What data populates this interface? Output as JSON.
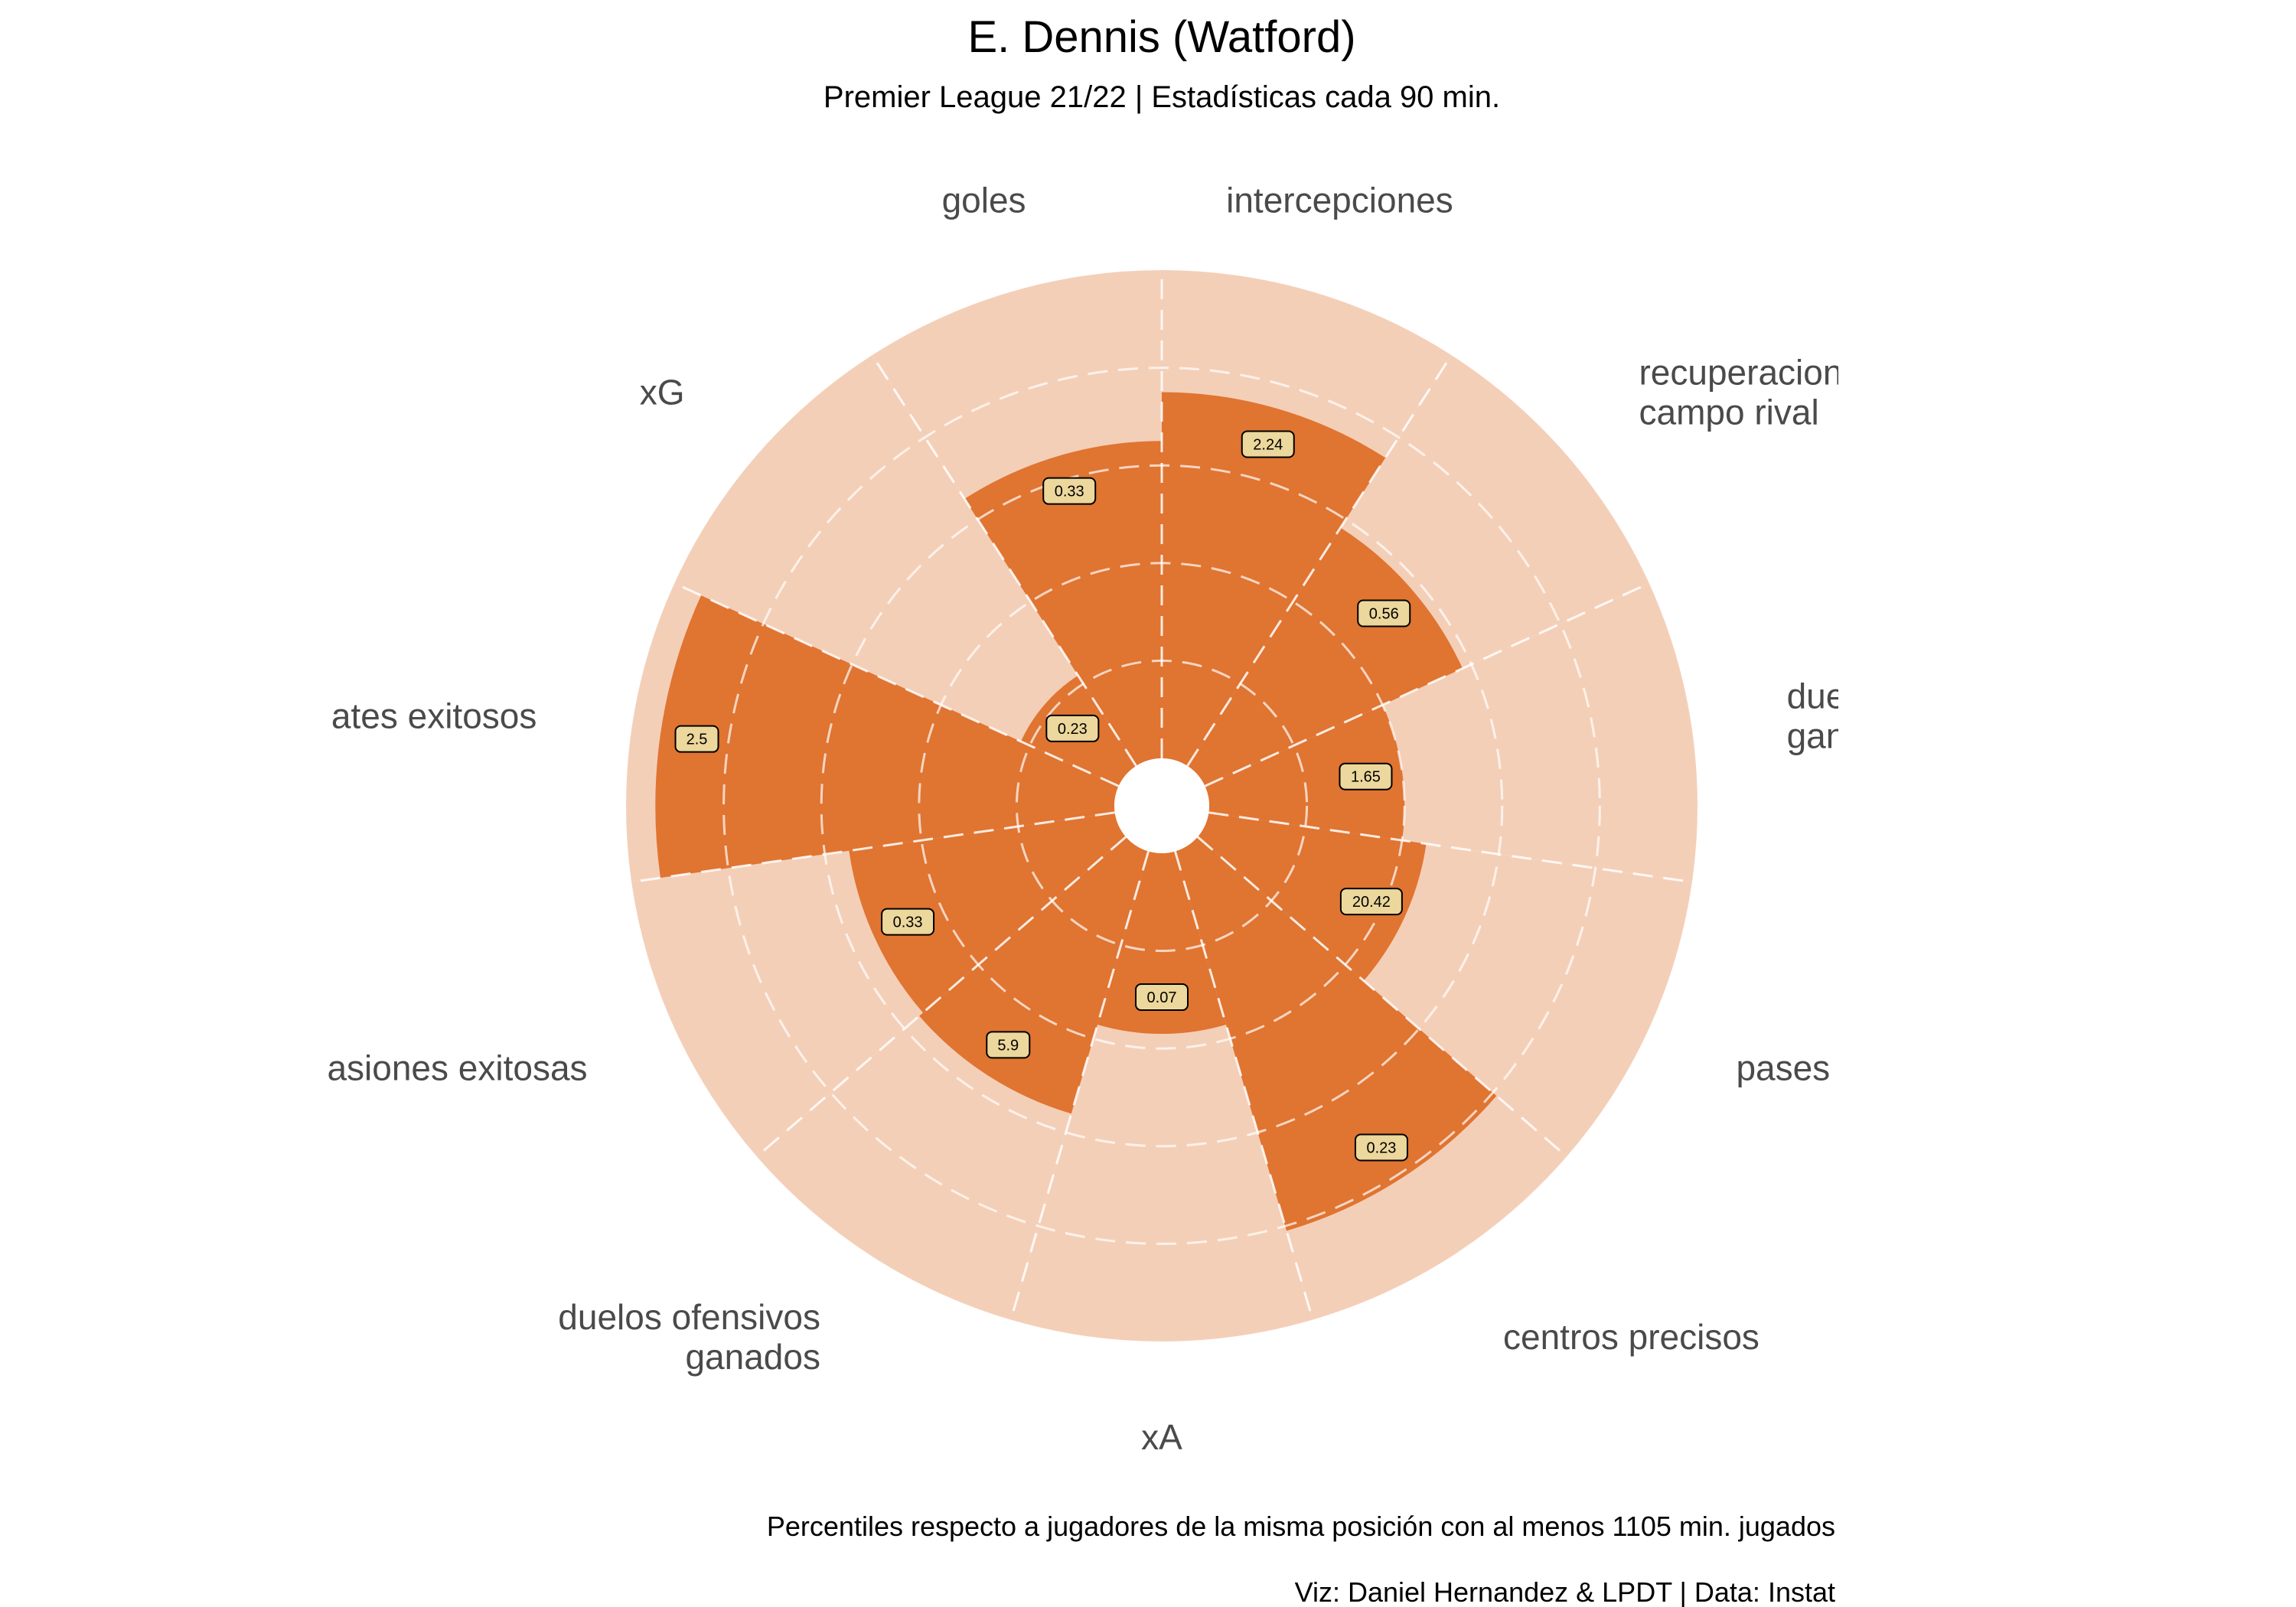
{
  "title": "E. Dennis (Watford)",
  "subtitle": "Premier League 21/22 | Estadísticas cada 90 min.",
  "footer_note": "Percentiles respecto a jugadores de la misma posición con al menos 1105 min. jugados",
  "footer_credit": "Viz: Daniel Hernandez & LPDT  |  Data: Instat",
  "colors": {
    "bar": "#e07431",
    "background_wedge": "#f4cfb8",
    "label_box": "#ecd79c",
    "label_text": "#000000",
    "category_text": "#4a4a4a",
    "grid": "#ffffff"
  },
  "chart_data": {
    "type": "polar-bar",
    "scale": "percentile",
    "rlim": [
      0,
      100
    ],
    "rings": [
      20,
      40,
      60,
      80
    ],
    "categories": [
      {
        "label": "intercepciones",
        "value_label": "2.24",
        "percentile": 75
      },
      {
        "label": "recuperaciones\ncampo rival",
        "value_label": "0.56",
        "percentile": 58
      },
      {
        "label": "duelos aéreos\nganados",
        "value_label": "1.65",
        "percentile": 40
      },
      {
        "label": "pases",
        "value_label": "20.42",
        "percentile": 45
      },
      {
        "label": "centros precisos",
        "value_label": "0.23",
        "percentile": 81
      },
      {
        "label": "xA",
        "value_label": "0.07",
        "percentile": 37
      },
      {
        "label": "duelos ofensivos\nganados",
        "value_label": "5.9",
        "percentile": 56
      },
      {
        "label": "regates exitosos",
        "value_label": "0.33",
        "percentile": 55
      },
      {
        "label": "regates exitosos",
        "value_label": "2.5",
        "percentile": 94
      },
      {
        "label": "xG",
        "value_label": "0.23",
        "percentile": 22
      },
      {
        "label": "goles",
        "value_label": "0.33",
        "percentile": 65
      }
    ],
    "category_display": [
      "intercepciones",
      "recuperaciones\ncampo rival",
      "duelos aéreos\nganados",
      "pases",
      "centros precisos",
      "xA",
      "duelos ofensivos\nganados",
      "asiones exitosas",
      "ates exitosos",
      "xG",
      "goles"
    ]
  }
}
